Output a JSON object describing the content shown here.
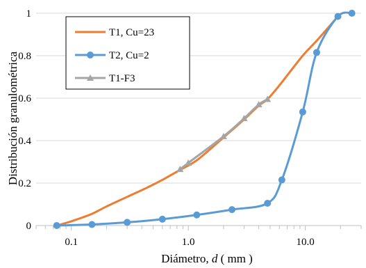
{
  "chart_data": {
    "type": "line",
    "title": "",
    "xlabel": "Diámetro, d ( mm )",
    "xlabel_parts": {
      "prefix": "Diámetro, ",
      "var": "d",
      "suffix": " ( mm )"
    },
    "ylabel": "Distribución granulométrica",
    "x_scale": "log",
    "xlim": [
      0.05,
      30
    ],
    "ylim": [
      0,
      1
    ],
    "x_ticks": [
      0.1,
      1.0,
      10.0
    ],
    "x_tick_labels": [
      "0.1",
      "1.0",
      "10.0"
    ],
    "y_ticks": [
      0,
      0.2,
      0.4,
      0.6,
      0.8,
      1
    ],
    "y_tick_labels": [
      "0",
      "0.2",
      "0.4",
      "0.6",
      "0.8",
      "1"
    ],
    "grid": "horizontal",
    "legend_position": "top-left",
    "series": [
      {
        "name": "T1, Cu=23",
        "color": "#ED7D31",
        "marker": "none",
        "x": [
          0.075,
          0.1,
          0.15,
          0.2,
          0.3,
          0.45,
          0.6,
          0.85,
          1.2,
          2.0,
          3.0,
          4.0,
          4.75,
          6.0,
          9.5,
          12.5,
          19.0
        ],
        "y": [
          0.0,
          0.02,
          0.055,
          0.09,
          0.135,
          0.18,
          0.215,
          0.262,
          0.31,
          0.415,
          0.5,
          0.565,
          0.595,
          0.66,
          0.8,
          0.87,
          0.985
        ]
      },
      {
        "name": "T2, Cu=2",
        "color": "#5B9BD5",
        "marker": "circle",
        "x": [
          0.075,
          0.15,
          0.3,
          0.6,
          1.18,
          2.36,
          4.75,
          6.3,
          9.5,
          12.5,
          19.0,
          25.0
        ],
        "y": [
          0.0,
          0.005,
          0.015,
          0.03,
          0.05,
          0.075,
          0.105,
          0.215,
          0.535,
          0.815,
          0.985,
          1.0
        ]
      },
      {
        "name": "T1-F3",
        "color": "#A5A5A5",
        "marker": "triangle",
        "x": [
          0.85,
          1.0,
          2.0,
          3.0,
          4.0,
          4.75
        ],
        "y": [
          0.265,
          0.295,
          0.42,
          0.505,
          0.57,
          0.595
        ]
      }
    ]
  }
}
